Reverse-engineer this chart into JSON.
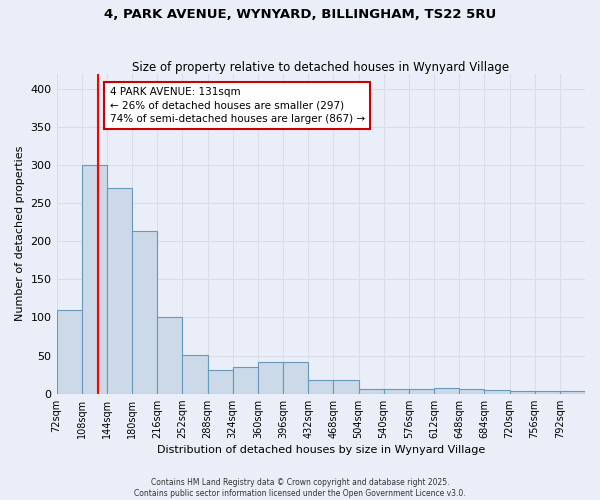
{
  "title": "4, PARK AVENUE, WYNYARD, BILLINGHAM, TS22 5RU",
  "subtitle": "Size of property relative to detached houses in Wynyard Village",
  "xlabel": "Distribution of detached houses by size in Wynyard Village",
  "ylabel": "Number of detached properties",
  "bar_color": "#ccd9e8",
  "bar_edge_color": "#6699bb",
  "background_color": "#eaeef8",
  "grid_color": "#d8dde8",
  "bins": [
    72,
    108,
    144,
    180,
    216,
    252,
    288,
    324,
    360,
    396,
    432,
    468,
    504,
    540,
    576,
    612,
    648,
    684,
    720,
    756,
    792
  ],
  "counts": [
    110,
    300,
    270,
    213,
    101,
    51,
    31,
    35,
    42,
    42,
    18,
    18,
    6,
    6,
    6,
    7,
    6,
    5,
    3,
    3,
    3
  ],
  "property_size": 131,
  "red_line_x": 131,
  "annotation_text": "4 PARK AVENUE: 131sqm\n← 26% of detached houses are smaller (297)\n74% of semi-detached houses are larger (867) →",
  "annotation_box_color": "#ffffff",
  "annotation_box_edge": "#cc0000",
  "ylim": [
    0,
    420
  ],
  "yticks": [
    0,
    50,
    100,
    150,
    200,
    250,
    300,
    350,
    400
  ],
  "footer_line1": "Contains HM Land Registry data © Crown copyright and database right 2025.",
  "footer_line2": "Contains public sector information licensed under the Open Government Licence v3.0."
}
